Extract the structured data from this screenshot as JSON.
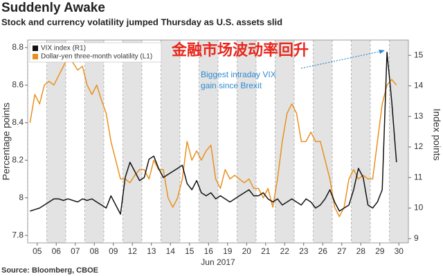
{
  "chart_data": {
    "type": "line",
    "title": "Suddenly Awake",
    "subtitle": "Stock and currency volatility jumped Thursday as U.S. assets slid",
    "overlay_text": "金融市场波动率回升",
    "annotation": [
      "Biggest intraday VIX",
      "gain since Brexit"
    ],
    "source": "Source: Bloomberg, CBOE",
    "xlabel": "Jun 2017",
    "ylabel": "Percentage points",
    "y2label": "Index points",
    "x": [
      0.125,
      0.375,
      0.625,
      0.875,
      1.125,
      1.375,
      1.625,
      1.875,
      2.125,
      2.375,
      2.625,
      2.875,
      3.125,
      3.375,
      3.625,
      3.875,
      4.125,
      4.375,
      4.625,
      4.875,
      5.125,
      5.375,
      5.625,
      5.875,
      6.125,
      6.375,
      6.625,
      6.875,
      7.125,
      7.375,
      7.625,
      7.875,
      8.125,
      8.375,
      8.625,
      8.875,
      9.125,
      9.375,
      9.625,
      9.875,
      10.125,
      10.375,
      10.625,
      10.875,
      11.125,
      11.375,
      11.625,
      11.875,
      12.125,
      12.375,
      12.625,
      12.875,
      13.125,
      13.375,
      13.625,
      13.875,
      14.125,
      14.375,
      14.625,
      14.875,
      15.125,
      15.375,
      15.625,
      15.875,
      16.125,
      16.375,
      16.625,
      16.875,
      17.125,
      17.375,
      17.625,
      17.875,
      18.125,
      18.375,
      18.625,
      18.875,
      19.125,
      19.375
    ],
    "xlim": [
      0,
      20
    ],
    "xticks": [
      {
        "value": 0.5,
        "label": "05"
      },
      {
        "value": 1.5,
        "label": "06"
      },
      {
        "value": 2.5,
        "label": "07"
      },
      {
        "value": 3.5,
        "label": "08"
      },
      {
        "value": 4.5,
        "label": "09"
      },
      {
        "value": 5.5,
        "label": "12"
      },
      {
        "value": 6.5,
        "label": "13"
      },
      {
        "value": 7.5,
        "label": "14"
      },
      {
        "value": 8.5,
        "label": "15"
      },
      {
        "value": 9.5,
        "label": "16"
      },
      {
        "value": 10.5,
        "label": "19"
      },
      {
        "value": 11.5,
        "label": "20"
      },
      {
        "value": 12.5,
        "label": "21"
      },
      {
        "value": 13.5,
        "label": "22"
      },
      {
        "value": 14.5,
        "label": "23"
      },
      {
        "value": 15.5,
        "label": "26"
      },
      {
        "value": 16.5,
        "label": "27"
      },
      {
        "value": 17.5,
        "label": "28"
      },
      {
        "value": 18.5,
        "label": "29"
      },
      {
        "value": 19.5,
        "label": "30"
      }
    ],
    "ylim": [
      7.76,
      8.84
    ],
    "yticks": [
      7.8,
      8.0,
      8.2,
      8.4,
      8.6,
      8.8
    ],
    "y2lim": [
      8.86,
      15.5
    ],
    "y2ticks": [
      9,
      10,
      11,
      12,
      13,
      14,
      15
    ],
    "legend": "top-left",
    "series": [
      {
        "name": "VIX index (R1)",
        "color": "#111111",
        "axis": "y2",
        "values": [
          9.9,
          9.95,
          10.0,
          10.1,
          10.2,
          10.3,
          10.3,
          10.25,
          10.3,
          10.25,
          10.2,
          10.3,
          10.25,
          10.3,
          10.2,
          10.1,
          10.0,
          10.4,
          10.1,
          9.8,
          11.0,
          11.5,
          11.2,
          10.9,
          11.0,
          11.6,
          11.7,
          11.3,
          11.0,
          11.1,
          11.2,
          11.3,
          11.4,
          10.8,
          10.6,
          10.9,
          10.5,
          10.4,
          10.5,
          10.3,
          10.4,
          10.3,
          10.2,
          10.3,
          10.4,
          10.5,
          10.6,
          10.4,
          10.4,
          10.5,
          10.3,
          10.2,
          10.3,
          10.1,
          10.2,
          10.3,
          10.2,
          10.1,
          10.3,
          10.2,
          10.0,
          10.1,
          10.3,
          10.6,
          10.2,
          9.9,
          10.0,
          10.1,
          10.6,
          11.3,
          11.0,
          10.1,
          10.0,
          10.2,
          10.6,
          15.1,
          13.5,
          11.5
        ]
      },
      {
        "name": "Dollar-yen three-month volatility (L1)",
        "color": "#e8901e",
        "values": [
          8.4,
          8.55,
          8.5,
          8.6,
          8.62,
          8.6,
          8.65,
          8.7,
          8.75,
          8.72,
          8.68,
          8.7,
          8.6,
          8.55,
          8.6,
          8.52,
          8.45,
          8.3,
          8.2,
          8.1,
          8.1,
          8.08,
          8.12,
          8.15,
          8.15,
          8.1,
          8.2,
          8.15,
          8.15,
          8.0,
          7.95,
          8.0,
          8.1,
          8.3,
          8.2,
          8.25,
          8.2,
          8.25,
          8.28,
          8.1,
          8.05,
          8.15,
          8.1,
          8.12,
          8.1,
          8.08,
          8.1,
          8.05,
          8.05,
          8.0,
          8.05,
          7.95,
          8.1,
          8.3,
          8.45,
          8.5,
          8.45,
          8.3,
          8.3,
          8.35,
          8.3,
          8.3,
          8.2,
          8.1,
          7.95,
          7.9,
          7.95,
          8.1,
          8.15,
          8.1,
          8.12,
          8.1,
          8.1,
          8.3,
          8.5,
          8.6,
          8.63,
          8.6
        ]
      }
    ]
  }
}
